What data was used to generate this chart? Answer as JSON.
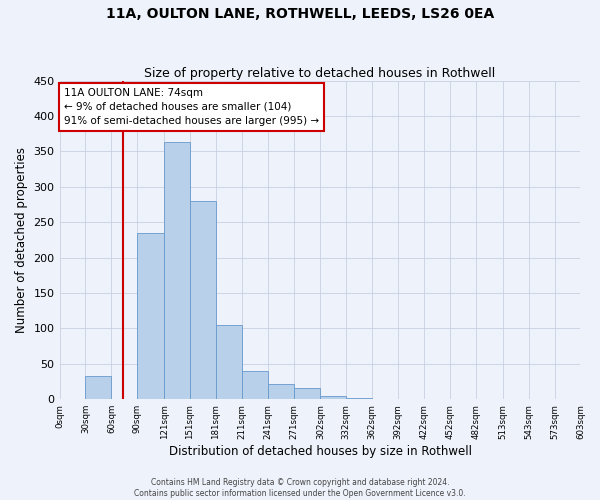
{
  "title": "11A, OULTON LANE, ROTHWELL, LEEDS, LS26 0EA",
  "subtitle": "Size of property relative to detached houses in Rothwell",
  "xlabel": "Distribution of detached houses by size in Rothwell",
  "ylabel": "Number of detached properties",
  "bar_values": [
    0,
    33,
    0,
    235,
    363,
    280,
    105,
    40,
    21,
    16,
    5,
    2,
    0,
    0,
    0,
    0,
    1,
    0,
    0,
    0
  ],
  "bin_edges": [
    0,
    30,
    60,
    90,
    121,
    151,
    181,
    211,
    241,
    271,
    302,
    332,
    362,
    392,
    422,
    452,
    482,
    513,
    543,
    573,
    603
  ],
  "tick_labels": [
    "0sqm",
    "30sqm",
    "60sqm",
    "90sqm",
    "121sqm",
    "151sqm",
    "181sqm",
    "211sqm",
    "241sqm",
    "271sqm",
    "302sqm",
    "332sqm",
    "362sqm",
    "392sqm",
    "422sqm",
    "452sqm",
    "482sqm",
    "513sqm",
    "543sqm",
    "573sqm",
    "603sqm"
  ],
  "bar_color": "#b8d0ea",
  "bar_edgecolor": "#6699cc",
  "vline_x": 74,
  "vline_color": "#cc0000",
  "ylim": [
    0,
    450
  ],
  "yticks": [
    0,
    50,
    100,
    150,
    200,
    250,
    300,
    350,
    400,
    450
  ],
  "annotation_text": "11A OULTON LANE: 74sqm\n← 9% of detached houses are smaller (104)\n91% of semi-detached houses are larger (995) →",
  "annotation_box_facecolor": "#ffffff",
  "annotation_box_edgecolor": "#cc0000",
  "footer_line1": "Contains HM Land Registry data © Crown copyright and database right 2024.",
  "footer_line2": "Contains public sector information licensed under the Open Government Licence v3.0.",
  "background_color": "#eef2fa",
  "grid_color": "#c8d0e0"
}
